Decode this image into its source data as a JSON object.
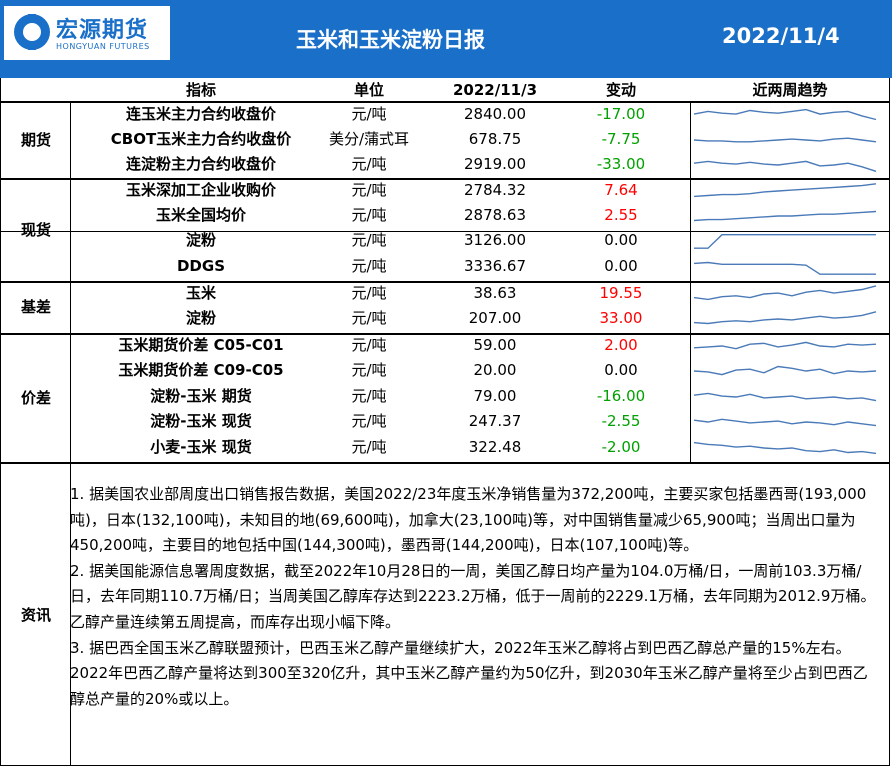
{
  "header": {
    "logo_cn": "宏源期货",
    "logo_en": "HONGYUAN FUTURES",
    "title": "玉米和玉米淀粉日报",
    "date": "2022/11/4"
  },
  "columns": {
    "indicator": "指标",
    "unit": "单位",
    "date": "2022/11/3",
    "change": "变动",
    "trend": "近两周趋势"
  },
  "sections": [
    {
      "label": "期货",
      "rows": [
        {
          "name": "连玉米主力合约收盘价",
          "unit": "元/吨",
          "value": "2840.00",
          "change": "-17.00",
          "dir": "down",
          "trend": [
            0.55,
            0.7,
            0.6,
            0.55,
            0.75,
            0.65,
            0.6,
            0.7,
            0.8,
            0.55,
            0.65,
            0.7,
            0.45,
            0.25
          ]
        },
        {
          "name": "CBOT玉米主力合约收盘价",
          "unit": "美分/蒲式耳",
          "value": "678.75",
          "change": "-7.75",
          "dir": "down",
          "trend": [
            0.5,
            0.45,
            0.45,
            0.4,
            0.4,
            0.45,
            0.5,
            0.55,
            0.5,
            0.45,
            0.55,
            0.6,
            0.5,
            0.4
          ]
        },
        {
          "name": "连淀粉主力合约收盘价",
          "unit": "元/吨",
          "value": "2919.00",
          "change": "-33.00",
          "dir": "down",
          "trend": [
            0.6,
            0.7,
            0.6,
            0.55,
            0.65,
            0.55,
            0.5,
            0.6,
            0.7,
            0.45,
            0.5,
            0.6,
            0.4,
            0.15
          ]
        }
      ]
    },
    {
      "label": "现货",
      "rows": [
        {
          "name": "玉米深加工企业收购价",
          "unit": "元/吨",
          "value": "2784.32",
          "change": "7.64",
          "dir": "up",
          "trend": [
            0.2,
            0.25,
            0.3,
            0.3,
            0.35,
            0.45,
            0.5,
            0.55,
            0.6,
            0.65,
            0.7,
            0.75,
            0.8,
            0.9
          ]
        },
        {
          "name": "玉米全国均价",
          "unit": "元/吨",
          "value": "2878.63",
          "change": "2.55",
          "dir": "up",
          "trend": [
            0.25,
            0.3,
            0.3,
            0.35,
            0.4,
            0.45,
            0.5,
            0.5,
            0.55,
            0.6,
            0.6,
            0.65,
            0.7,
            0.75
          ]
        },
        {
          "name": "淀粉",
          "unit": "元/吨",
          "value": "3126.00",
          "change": "0.00",
          "dir": "flat",
          "trend": [
            0.1,
            0.1,
            0.85,
            0.85,
            0.85,
            0.85,
            0.85,
            0.85,
            0.85,
            0.85,
            0.85,
            0.85,
            0.85,
            0.85
          ]
        },
        {
          "name": "DDGS",
          "unit": "元/吨",
          "value": "3336.67",
          "change": "0.00",
          "dir": "flat",
          "trend": [
            0.7,
            0.75,
            0.65,
            0.65,
            0.65,
            0.65,
            0.65,
            0.65,
            0.6,
            0.1,
            0.1,
            0.1,
            0.1,
            0.1
          ]
        }
      ]
    },
    {
      "label": "基差",
      "rows": [
        {
          "name": "玉米",
          "unit": "元/吨",
          "value": "38.63",
          "change": "19.55",
          "dir": "up",
          "trend": [
            0.3,
            0.2,
            0.35,
            0.4,
            0.3,
            0.5,
            0.55,
            0.4,
            0.6,
            0.7,
            0.55,
            0.65,
            0.75,
            0.95
          ]
        },
        {
          "name": "淀粉",
          "unit": "元/吨",
          "value": "207.00",
          "change": "33.00",
          "dir": "up",
          "trend": [
            0.3,
            0.25,
            0.35,
            0.4,
            0.35,
            0.45,
            0.5,
            0.45,
            0.55,
            0.65,
            0.55,
            0.6,
            0.7,
            0.9
          ]
        }
      ]
    },
    {
      "label": "价差",
      "rows": [
        {
          "name": "玉米期货价差 C05-C01",
          "unit": "元/吨",
          "value": "59.00",
          "change": "2.00",
          "dir": "up",
          "trend": [
            0.4,
            0.45,
            0.5,
            0.35,
            0.6,
            0.65,
            0.45,
            0.55,
            0.7,
            0.5,
            0.45,
            0.6,
            0.55,
            0.6
          ]
        },
        {
          "name": "玉米期货价差 C09-C05",
          "unit": "元/吨",
          "value": "20.00",
          "change": "0.00",
          "dir": "flat",
          "trend": [
            0.5,
            0.45,
            0.3,
            0.55,
            0.6,
            0.4,
            0.75,
            0.65,
            0.5,
            0.6,
            0.35,
            0.5,
            0.45,
            0.5
          ]
        },
        {
          "name": "淀粉-玉米 期货",
          "unit": "元/吨",
          "value": "79.00",
          "change": "-16.00",
          "dir": "down",
          "trend": [
            0.6,
            0.7,
            0.55,
            0.5,
            0.65,
            0.45,
            0.5,
            0.55,
            0.4,
            0.45,
            0.5,
            0.4,
            0.45,
            0.3
          ]
        },
        {
          "name": "淀粉-玉米 现货",
          "unit": "元/吨",
          "value": "247.37",
          "change": "-2.55",
          "dir": "down",
          "trend": [
            0.6,
            0.5,
            0.65,
            0.55,
            0.45,
            0.5,
            0.55,
            0.4,
            0.5,
            0.45,
            0.35,
            0.5,
            0.4,
            0.3
          ]
        },
        {
          "name": "小麦-玉米 现货",
          "unit": "元/吨",
          "value": "322.48",
          "change": "-2.00",
          "dir": "down",
          "trend": [
            0.8,
            0.7,
            0.65,
            0.55,
            0.6,
            0.5,
            0.45,
            0.5,
            0.35,
            0.3,
            0.4,
            0.25,
            0.3,
            0.2
          ]
        }
      ]
    }
  ],
  "news": {
    "label": "资讯",
    "paragraphs": [
      "1. 据美国农业部周度出口销售报告数据，美国2022/23年度玉米净销售量为372,200吨，主要买家包括墨西哥(193,000吨)，日本(132,100吨)，未知目的地(69,600吨)，加拿大(23,100吨)等，对中国销售量减少65,900吨；当周出口量为450,200吨，主要目的地包括中国(144,300吨)，墨西哥(144,200吨)，日本(107,100吨)等。",
      "2. 据美国能源信息署周度数据，截至2022年10月28日的一周，美国乙醇日均产量为104.0万桶/日，一周前103.3万桶/日，去年同期110.7万桶/日；当周美国乙醇库存达到2223.2万桶，低于一周前的2229.1万桶，去年同期为2012.9万桶。乙醇产量连续第五周提高，而库存出现小幅下降。",
      "3. 据巴西全国玉米乙醇联盟预计，巴西玉米乙醇产量继续扩大，2022年玉米乙醇将占到巴西乙醇总产量的15%左右。2022年巴西乙醇产量将达到300至320亿升，其中玉米乙醇产量约为50亿升，到2030年玉米乙醇产量将至少占到巴西乙醇总产量的20%或以上。"
    ]
  },
  "colors": {
    "header_bg": "#1a6fc8",
    "up": "#ff0000",
    "down": "#00a000",
    "trend_line": "#4a7ab8"
  }
}
